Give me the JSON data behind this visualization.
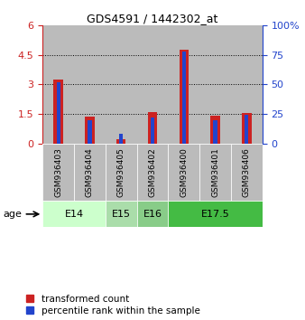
{
  "title": "GDS4591 / 1442302_at",
  "samples": [
    "GSM936403",
    "GSM936404",
    "GSM936405",
    "GSM936402",
    "GSM936400",
    "GSM936401",
    "GSM936406"
  ],
  "transformed_counts": [
    3.25,
    1.35,
    0.2,
    1.6,
    4.75,
    1.4,
    1.55
  ],
  "percentile_ranks": [
    52,
    20,
    8,
    22,
    78,
    20,
    24
  ],
  "ages": [
    {
      "label": "E14",
      "samples": [
        0,
        1
      ],
      "color": "#ccffcc"
    },
    {
      "label": "E15",
      "samples": [
        2
      ],
      "color": "#aaddaa"
    },
    {
      "label": "E16",
      "samples": [
        3
      ],
      "color": "#88cc88"
    },
    {
      "label": "E17.5",
      "samples": [
        4,
        5,
        6
      ],
      "color": "#44bb44"
    }
  ],
  "ylim_left": [
    0,
    6
  ],
  "ylim_right": [
    0,
    100
  ],
  "yticks_left": [
    0,
    1.5,
    3.0,
    4.5,
    6.0
  ],
  "ytick_labels_left": [
    "0",
    "1.5",
    "3",
    "4.5",
    "6"
  ],
  "yticks_right": [
    0,
    25,
    50,
    75,
    100
  ],
  "ytick_labels_right": [
    "0",
    "25",
    "50",
    "75",
    "100%"
  ],
  "red_color": "#cc2222",
  "blue_color": "#2244cc",
  "bg_color": "#bbbbbb",
  "legend_red": "transformed count",
  "legend_blue": "percentile rank within the sample"
}
